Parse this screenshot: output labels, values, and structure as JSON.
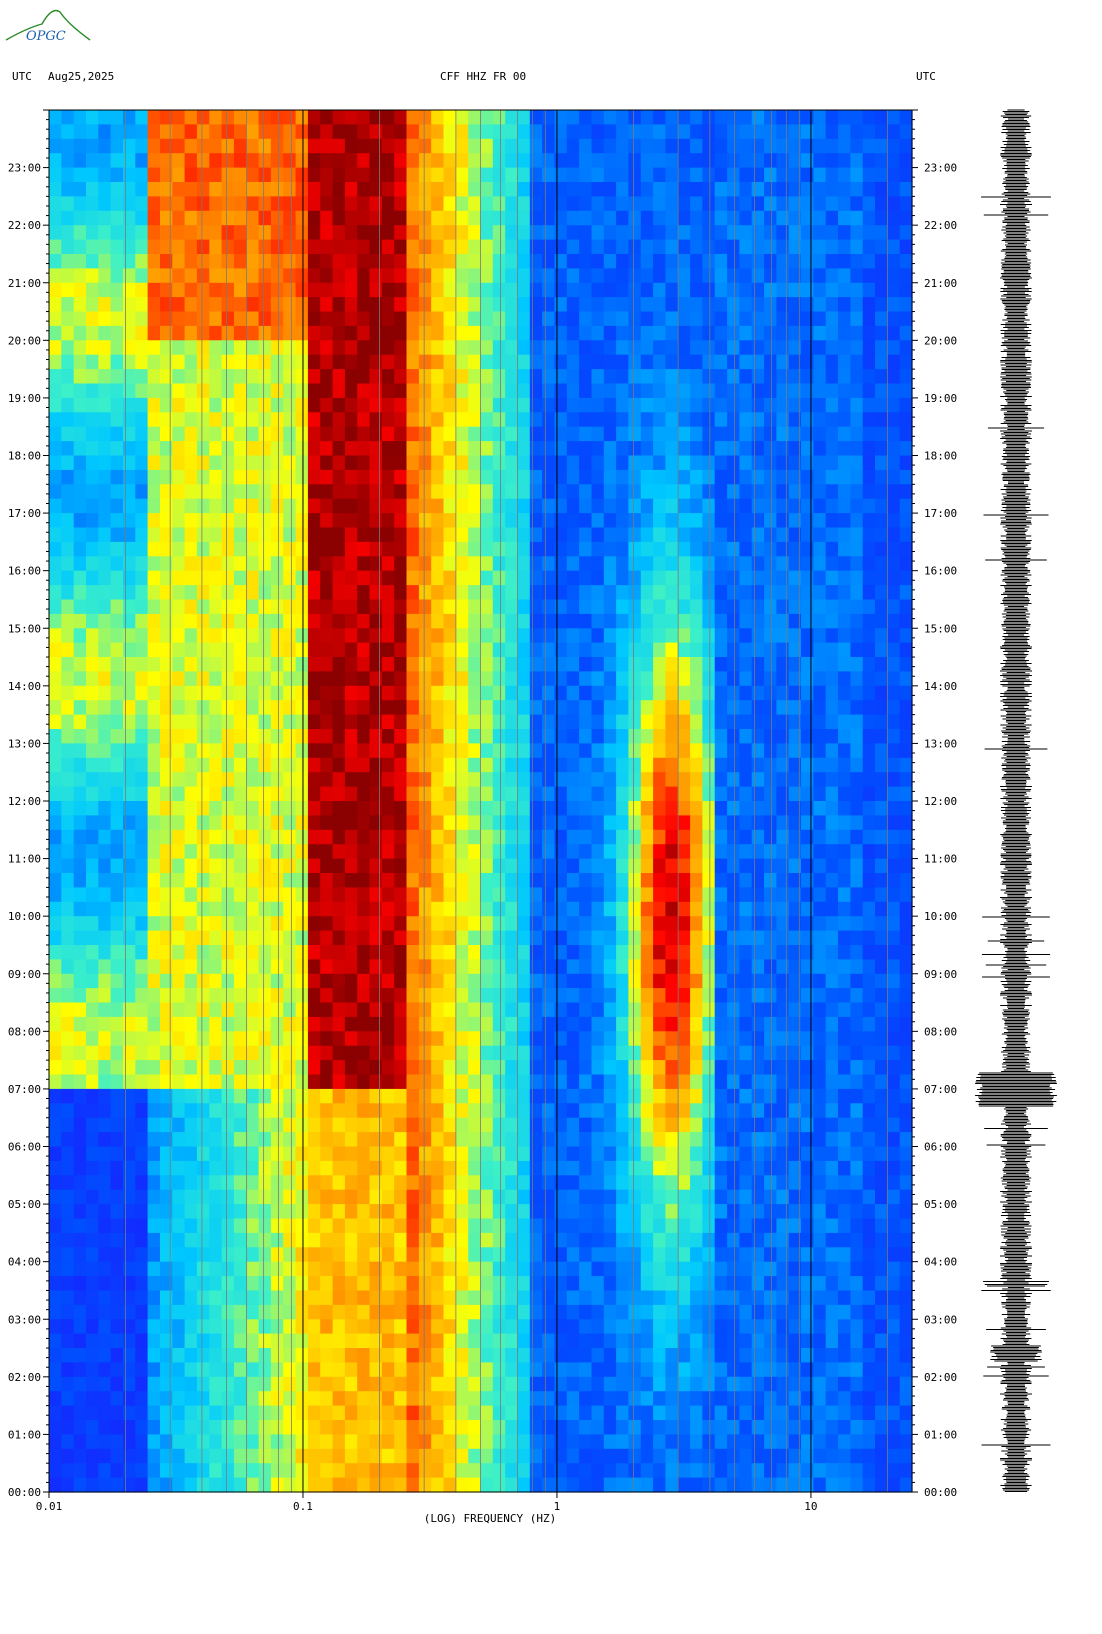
{
  "header": {
    "left_tz": "UTC",
    "date": "Aug25,2025",
    "station": "CFF HHZ FR 00",
    "right_tz": "UTC"
  },
  "logo": {
    "text": "OPGC"
  },
  "chart_data": {
    "type": "heatmap",
    "xlabel": "(LOG) FREQUENCY (HZ)",
    "xscale": "log",
    "xlim": [
      0.01,
      25
    ],
    "x_ticks": [
      "0.01",
      "0.1",
      "1",
      "10"
    ],
    "ylim_hours": [
      0,
      24
    ],
    "y_ticks": [
      "00:00",
      "01:00",
      "02:00",
      "03:00",
      "04:00",
      "05:00",
      "06:00",
      "07:00",
      "08:00",
      "09:00",
      "10:00",
      "11:00",
      "12:00",
      "13:00",
      "14:00",
      "15:00",
      "16:00",
      "17:00",
      "18:00",
      "19:00",
      "20:00",
      "21:00",
      "22:00",
      "23:00"
    ],
    "colormap": [
      "#1a1aff",
      "#00c8ff",
      "#ffff00",
      "#ff0000",
      "#8b0000"
    ],
    "events_utc": [
      "02:25",
      "07:00",
      "22:25"
    ],
    "seismogram": "black trace, right side"
  }
}
